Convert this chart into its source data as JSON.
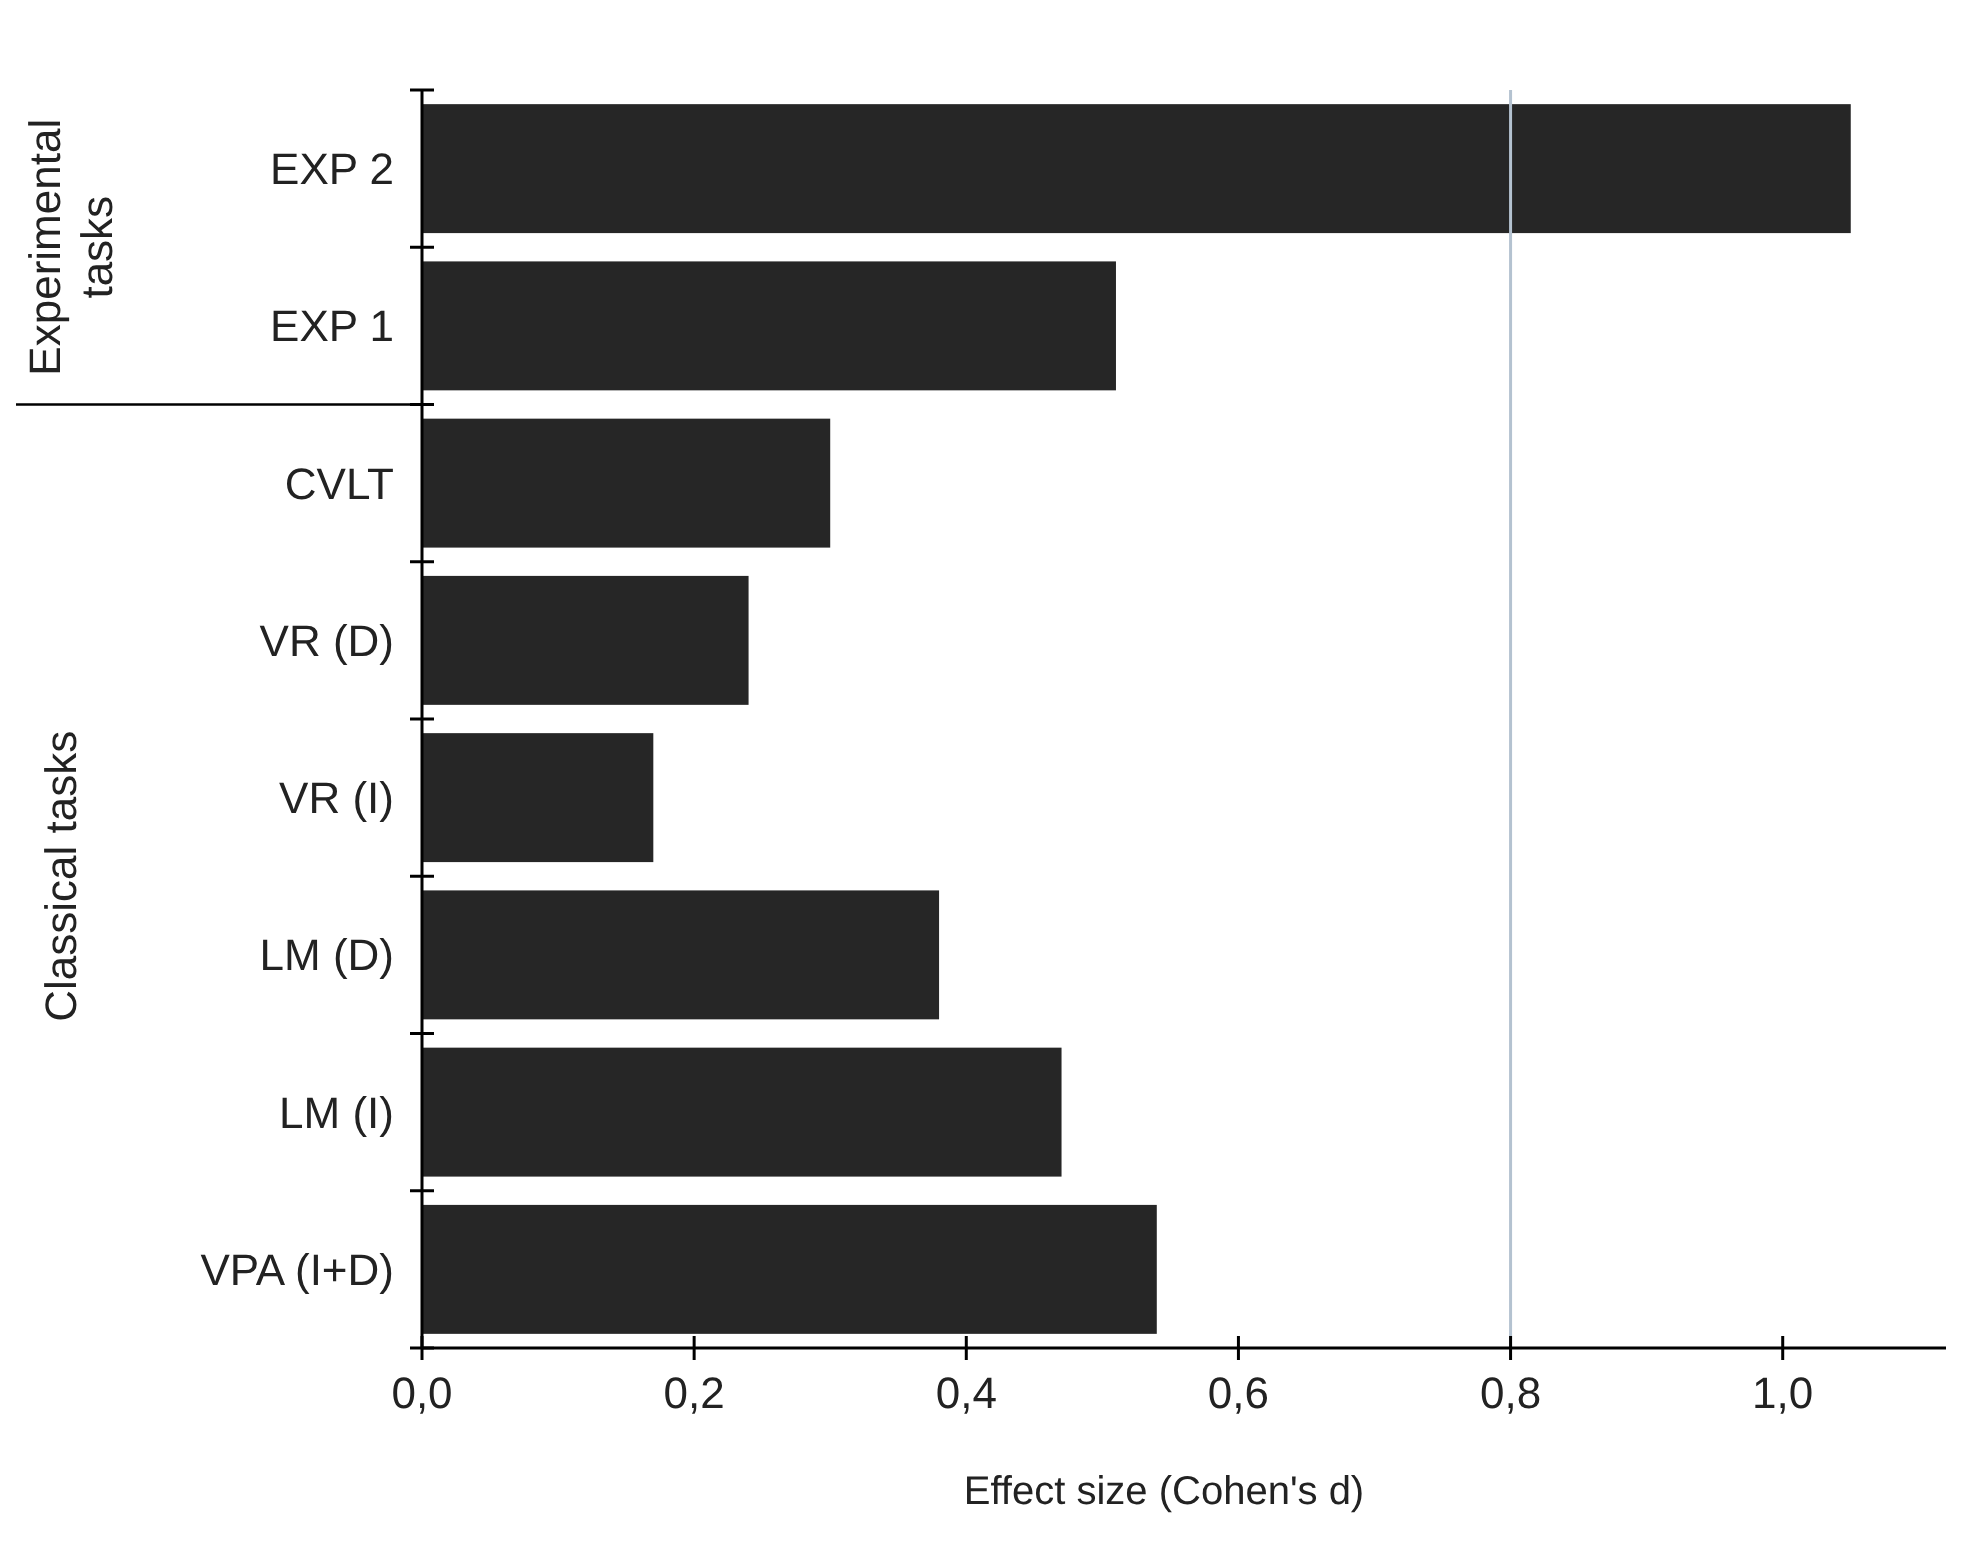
{
  "chart_data": {
    "type": "bar",
    "orientation": "horizontal",
    "xlabel": "Effect size (Cohen's d)",
    "categories": [
      "EXP 2",
      "EXP 1",
      "CVLT",
      "VR (D)",
      "VR (I)",
      "LM (D)",
      "LM (I)",
      "VPA (I+D)"
    ],
    "values": [
      1.05,
      0.51,
      0.3,
      0.24,
      0.17,
      0.38,
      0.47,
      0.54
    ],
    "color": "#262626",
    "xlim": [
      0,
      1.12
    ],
    "xticks": [
      {
        "value": 0,
        "label": "0,0"
      },
      {
        "value": 0.2,
        "label": "0,2"
      },
      {
        "value": 0.4,
        "label": "0,4"
      },
      {
        "value": 0.6,
        "label": "0,6"
      },
      {
        "value": 0.8,
        "label": "0,8"
      },
      {
        "value": 1.0,
        "label": "1,0"
      }
    ],
    "ref_lines": [
      {
        "axis": "x",
        "value": 0.8,
        "color": "#b4c2d0"
      }
    ],
    "annotations": [
      "Experimental tasks",
      "Classical tasks"
    ],
    "grid": false
  }
}
